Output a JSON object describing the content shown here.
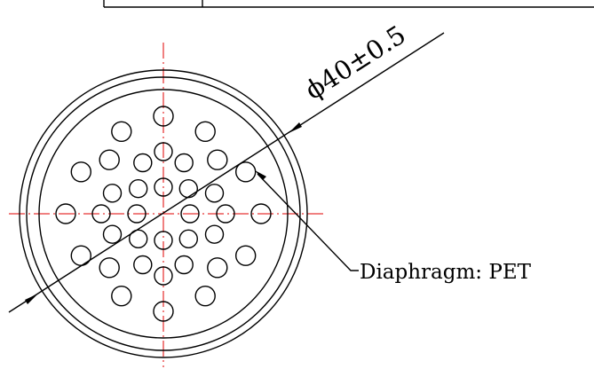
{
  "drawing": {
    "dimension_text": "ϕ40±0.5",
    "callout_text": "Diaphragm: PET"
  },
  "colors": {
    "line": "#000000",
    "centerline": "#e00000",
    "background": "#ffffff"
  }
}
